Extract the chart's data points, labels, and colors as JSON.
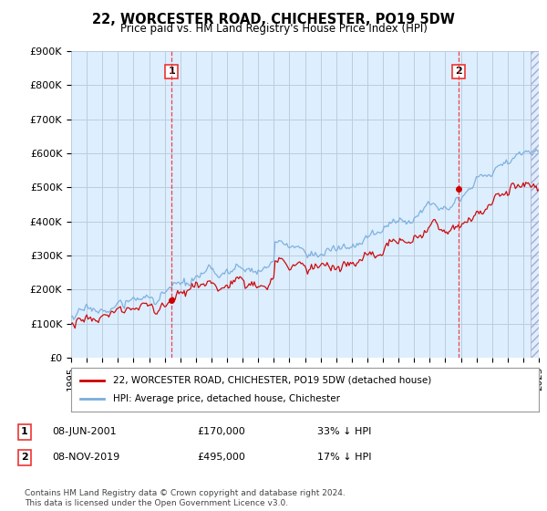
{
  "title": "22, WORCESTER ROAD, CHICHESTER, PO19 5DW",
  "subtitle": "Price paid vs. HM Land Registry's House Price Index (HPI)",
  "legend_line1": "22, WORCESTER ROAD, CHICHESTER, PO19 5DW (detached house)",
  "legend_line2": "HPI: Average price, detached house, Chichester",
  "transaction1_label": "1",
  "transaction1_date": "08-JUN-2001",
  "transaction1_price": "£170,000",
  "transaction1_hpi": "33% ↓ HPI",
  "transaction1_year": 2001.44,
  "transaction1_value": 170000,
  "transaction2_label": "2",
  "transaction2_date": "08-NOV-2019",
  "transaction2_price": "£495,000",
  "transaction2_hpi": "17% ↓ HPI",
  "transaction2_year": 2019.85,
  "transaction2_value": 495000,
  "ylabel_ticks": [
    "£0",
    "£100K",
    "£200K",
    "£300K",
    "£400K",
    "£500K",
    "£600K",
    "£700K",
    "£800K",
    "£900K"
  ],
  "ytick_values": [
    0,
    100000,
    200000,
    300000,
    400000,
    500000,
    600000,
    700000,
    800000,
    900000
  ],
  "xmin": 1995,
  "xmax": 2025,
  "ymin": 0,
  "ymax": 900000,
  "red_color": "#CC0000",
  "blue_color": "#7aaedc",
  "dashed_red_color": "#EE3333",
  "background_color": "#FFFFFF",
  "plot_bg_color": "#ddeeff",
  "grid_color": "#BBCCDD",
  "footnote": "Contains HM Land Registry data © Crown copyright and database right 2024.\nThis data is licensed under the Open Government Licence v3.0."
}
